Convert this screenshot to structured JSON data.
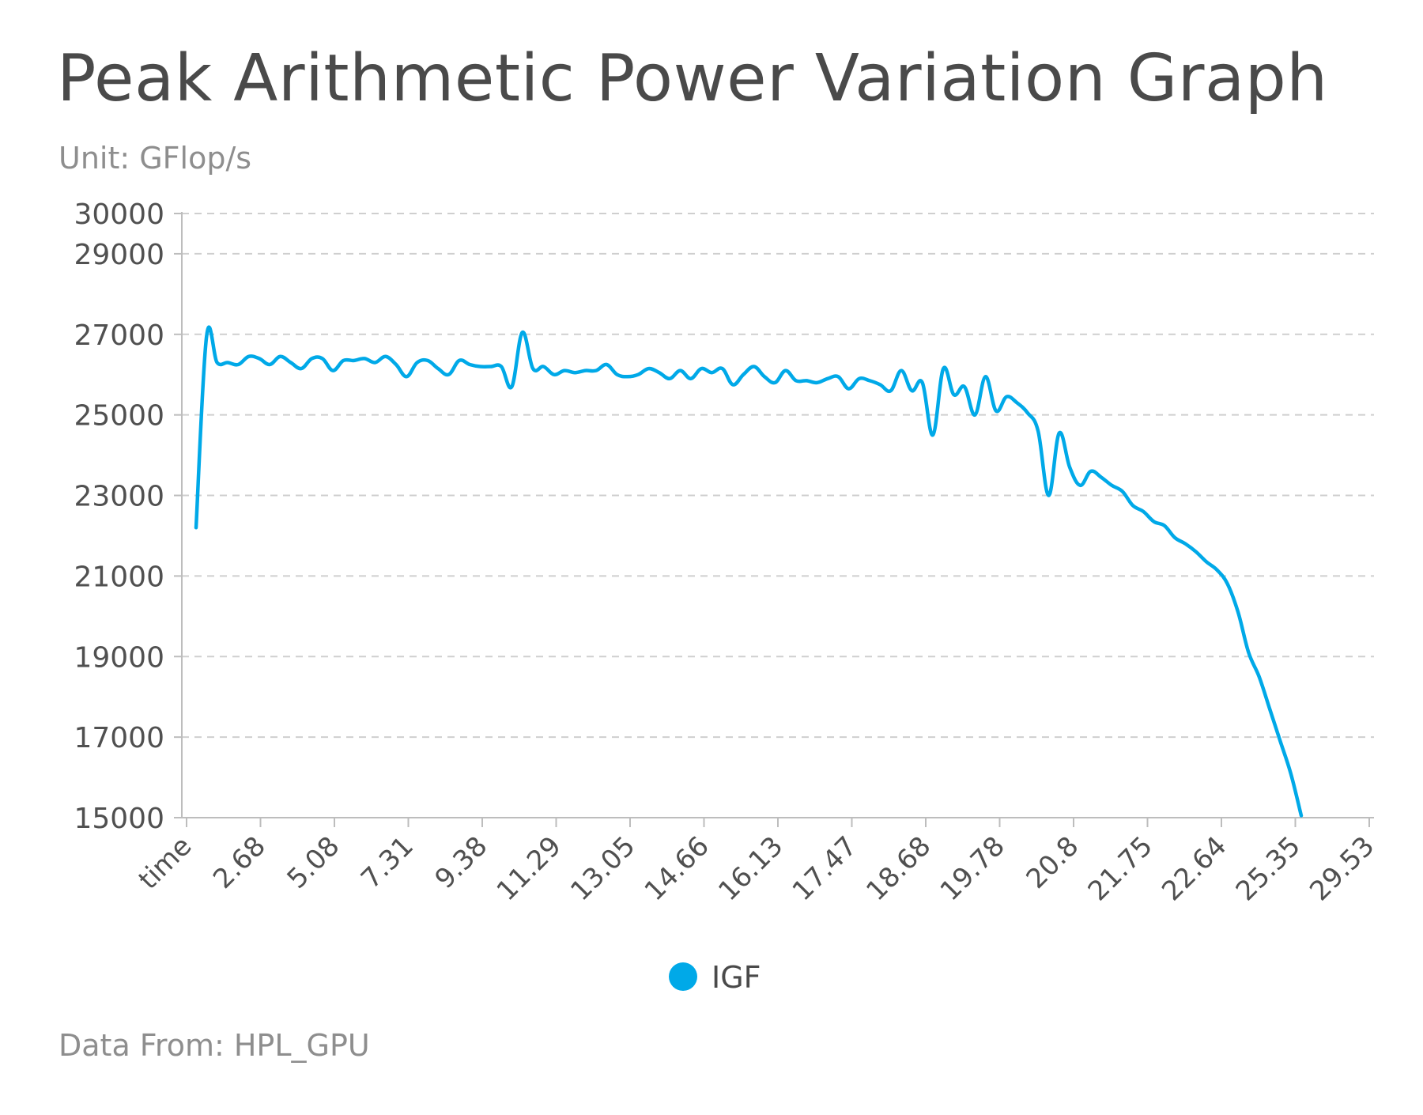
{
  "title": "Peak Arithmetic Power Variation Graph",
  "subtitle": "Unit: GFlop/s",
  "footer": "Data From: HPL_GPU",
  "chart_data": {
    "type": "line",
    "title": "Peak Arithmetic Power Variation Graph",
    "unit": "GFlop/s",
    "ylim": [
      15000,
      30000
    ],
    "y_ticks": [
      15000,
      17000,
      19000,
      21000,
      23000,
      25000,
      27000,
      29000,
      30000
    ],
    "x_tick_labels": [
      "time",
      "2.68",
      "5.08",
      "7.31",
      "9.38",
      "11.29",
      "13.05",
      "14.66",
      "16.13",
      "17.47",
      "18.68",
      "19.78",
      "20.8",
      "21.75",
      "22.64",
      "25.35",
      "29.53"
    ],
    "grid": true,
    "legend_position": "bottom-center",
    "colors": {
      "IGF": "#00a9e8"
    },
    "series": [
      {
        "name": "IGF",
        "color": "#00a9e8",
        "values": [
          22200,
          26950,
          26300,
          26300,
          26250,
          26450,
          26400,
          26250,
          26450,
          26300,
          26150,
          26400,
          26400,
          26100,
          26350,
          26350,
          26400,
          26300,
          26450,
          26250,
          25950,
          26300,
          26350,
          26150,
          26000,
          26350,
          26250,
          26200,
          26200,
          26200,
          25700,
          27050,
          26150,
          26200,
          26000,
          26100,
          26050,
          26100,
          26100,
          26250,
          26000,
          25950,
          26000,
          26150,
          26050,
          25900,
          26100,
          25900,
          26150,
          26050,
          26150,
          25750,
          26000,
          26200,
          25950,
          25800,
          26100,
          25850,
          25850,
          25800,
          25900,
          25950,
          25650,
          25900,
          25850,
          25750,
          25600,
          26100,
          25600,
          25800,
          24500,
          26150,
          25500,
          25700,
          25000,
          25950,
          25100,
          25450,
          25300,
          25050,
          24600,
          23000,
          24550,
          23700,
          23250,
          23600,
          23450,
          23250,
          23100,
          22750,
          22600,
          22350,
          22250,
          21950,
          21800,
          21600,
          21350,
          21150,
          20800,
          20100,
          19100,
          18500,
          17700,
          16900,
          16100,
          15050
        ]
      }
    ]
  }
}
